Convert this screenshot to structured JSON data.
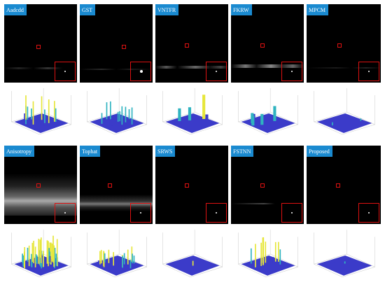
{
  "panels": [
    {
      "label": "Aadcdd"
    },
    {
      "label": "GST"
    },
    {
      "label": "VNTFR"
    },
    {
      "label": "FKRW"
    },
    {
      "label": "MPCM"
    },
    {
      "label": "Anisotropy"
    },
    {
      "label": "Tophat"
    },
    {
      "label": "SRWS"
    },
    {
      "label": "FSTNN"
    },
    {
      "label": "Proposed"
    }
  ],
  "colors": {
    "label_bg": "#1a8ad0",
    "highlight": "#d11111",
    "surface_low": "#3b3bc9",
    "surface_mid": "#2fb3c0",
    "surface_high": "#e6e63a"
  }
}
